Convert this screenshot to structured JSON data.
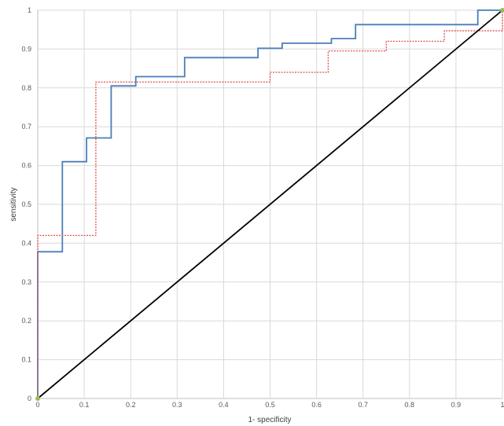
{
  "chart_data": {
    "type": "line",
    "title": "",
    "xlabel": "1- specificity",
    "ylabel": "sensitivity",
    "xlim": [
      0,
      1
    ],
    "ylim": [
      0,
      1
    ],
    "grid": true,
    "x_ticks": [
      "0",
      "0.1",
      "0.2",
      "0.3",
      "0.4",
      "0.5",
      "0.6",
      "0.7",
      "0.8",
      "0.9",
      "1"
    ],
    "y_ticks": [
      "0",
      "0.1",
      "0.2",
      "0.3",
      "0.4",
      "0.5",
      "0.6",
      "0.7",
      "0.8",
      "0.9",
      "1"
    ],
    "colors": {
      "solid_series": "#4a7ebb",
      "dotted_series": "#e0504b",
      "reference_line": "#000000",
      "endpoint_marker": "#9bbb59",
      "grid": "#d9d9d9"
    },
    "series": [
      {
        "style": "solid",
        "color": "#4a7ebb",
        "x": [
          0,
          0,
          0.053,
          0.053,
          0.105,
          0.105,
          0.158,
          0.158,
          0.211,
          0.211,
          0.316,
          0.316,
          0.474,
          0.474,
          0.526,
          0.526,
          0.632,
          0.632,
          0.684,
          0.684,
          0.947,
          0.947,
          1
        ],
        "y": [
          0,
          0.378,
          0.378,
          0.61,
          0.61,
          0.671,
          0.671,
          0.805,
          0.805,
          0.829,
          0.829,
          0.878,
          0.878,
          0.902,
          0.902,
          0.915,
          0.915,
          0.927,
          0.927,
          0.963,
          0.963,
          1,
          1
        ]
      },
      {
        "style": "dotted",
        "color": "#e0504b",
        "x": [
          0,
          0,
          0.125,
          0.125,
          0.5,
          0.5,
          0.625,
          0.625,
          0.75,
          0.75,
          0.875,
          0.875,
          1,
          1
        ],
        "y": [
          0,
          0.42,
          0.42,
          0.815,
          0.815,
          0.84,
          0.84,
          0.895,
          0.895,
          0.92,
          0.92,
          0.947,
          0.947,
          1
        ]
      },
      {
        "style": "reference",
        "color": "#000000",
        "x": [
          0,
          1
        ],
        "y": [
          0,
          1
        ]
      }
    ],
    "markers": [
      {
        "x": 0,
        "y": 0
      },
      {
        "x": 1,
        "y": 1
      }
    ]
  }
}
